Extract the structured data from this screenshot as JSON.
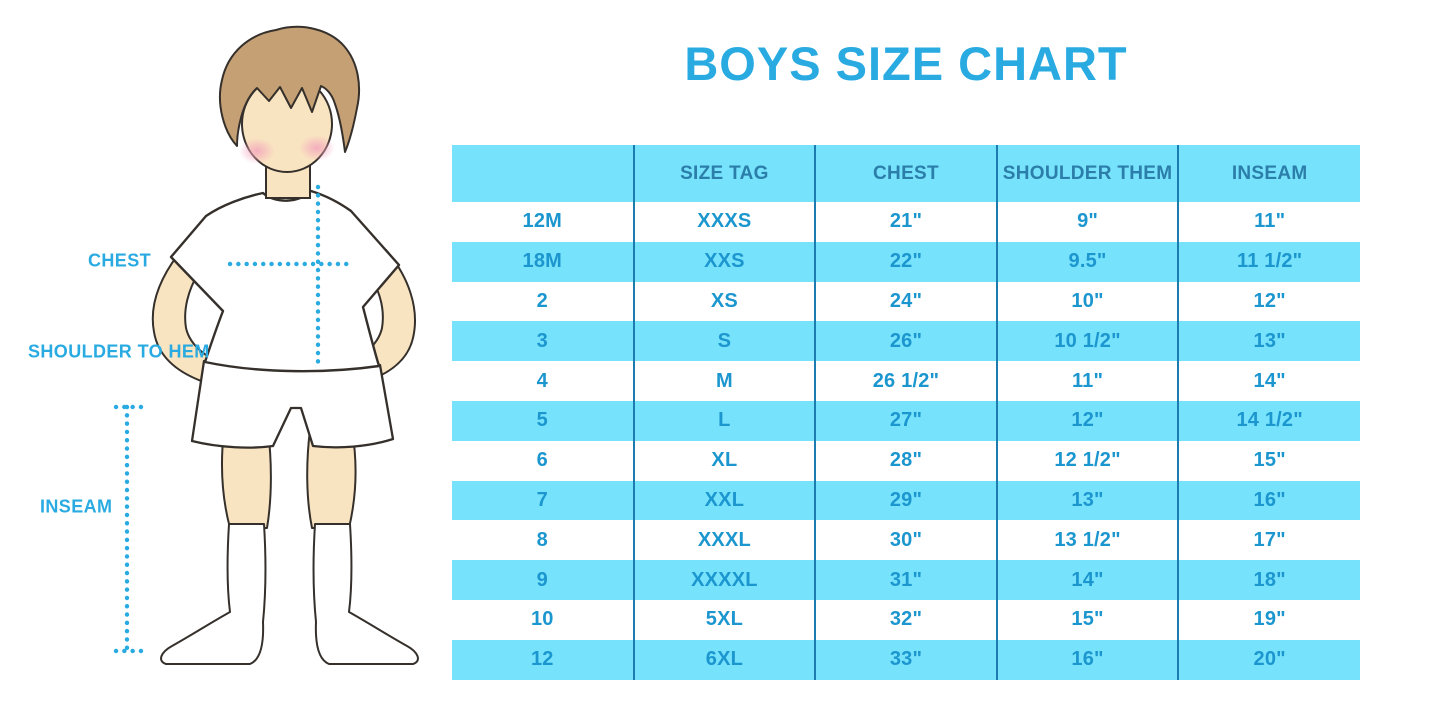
{
  "title": {
    "text": "BOYS SIZE CHART",
    "color": "#29ABE2"
  },
  "figure": {
    "description": "faceless boy illustration in white t-shirt, shorts and knee socks with dotted measurement guides",
    "labels": {
      "chest": "CHEST",
      "shoulder_to_hem": "SHOULDER TO HEM",
      "inseam": "INSEAM"
    },
    "colors": {
      "skin": "#F9E4C1",
      "hair": "#C5A075",
      "blush": "#F2A4BC",
      "outline": "#35302B",
      "clothes": "#FFFFFF",
      "measure_line": "#29ABE2"
    }
  },
  "chart_data": {
    "type": "table",
    "title": "BOYS SIZE CHART",
    "columns": [
      "",
      "SIZE TAG",
      "CHEST",
      "SHOULDER THEM",
      "INSEAM"
    ],
    "rows": [
      [
        "12M",
        "XXXS",
        "21\"",
        "9\"",
        "11\""
      ],
      [
        "18M",
        "XXS",
        "22\"",
        "9.5\"",
        "11 1/2\""
      ],
      [
        "2",
        "XS",
        "24\"",
        "10\"",
        "12\""
      ],
      [
        "3",
        "S",
        "26\"",
        "10 1/2\"",
        "13\""
      ],
      [
        "4",
        "M",
        "26 1/2\"",
        "11\"",
        "14\""
      ],
      [
        "5",
        "L",
        "27\"",
        "12\"",
        "14 1/2\""
      ],
      [
        "6",
        "XL",
        "28\"",
        "12 1/2\"",
        "15\""
      ],
      [
        "7",
        "XXL",
        "29\"",
        "13\"",
        "16\""
      ],
      [
        "8",
        "XXXL",
        "30\"",
        "13 1/2\"",
        "17\""
      ],
      [
        "9",
        "XXXXL",
        "31\"",
        "14\"",
        "18\""
      ],
      [
        "10",
        "5XL",
        "32\"",
        "15\"",
        "19\""
      ],
      [
        "12",
        "6XL",
        "33\"",
        "16\"",
        "20\""
      ]
    ],
    "style": {
      "header_bg": "#76E2FB",
      "stripe_bg": "#76E2FB",
      "header_text": "#2B7EA9",
      "cell_text": "#1C96CF",
      "column_divider": "#1C7CAF"
    }
  }
}
